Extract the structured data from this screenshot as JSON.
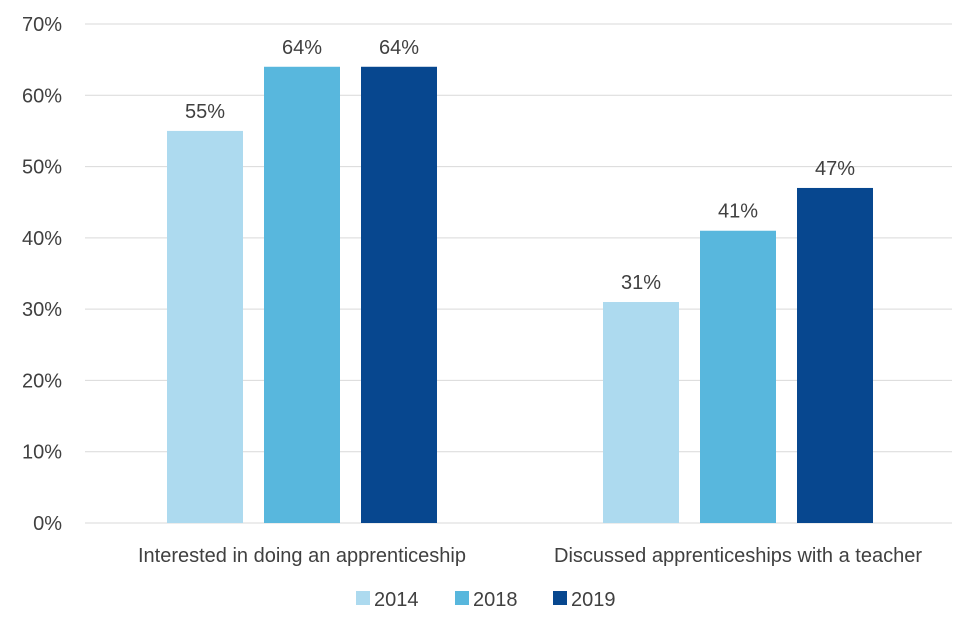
{
  "chart_data": {
    "type": "bar",
    "categories": [
      "Interested in doing an apprenticeship",
      "Discussed apprenticeships with a teacher"
    ],
    "series": [
      {
        "name": "2014",
        "values": [
          55,
          31
        ],
        "color": "#addaef"
      },
      {
        "name": "2018",
        "values": [
          64,
          41
        ],
        "color": "#58b7dd"
      },
      {
        "name": "2019",
        "values": [
          64,
          47
        ],
        "color": "#07478f"
      }
    ],
    "value_suffix": "%",
    "y_ticks": [
      "0%",
      "10%",
      "20%",
      "30%",
      "40%",
      "50%",
      "60%",
      "70%"
    ],
    "ylim": [
      0,
      70
    ],
    "title": "",
    "xlabel": "",
    "ylabel": "",
    "grid": true,
    "legend_position": "bottom"
  }
}
